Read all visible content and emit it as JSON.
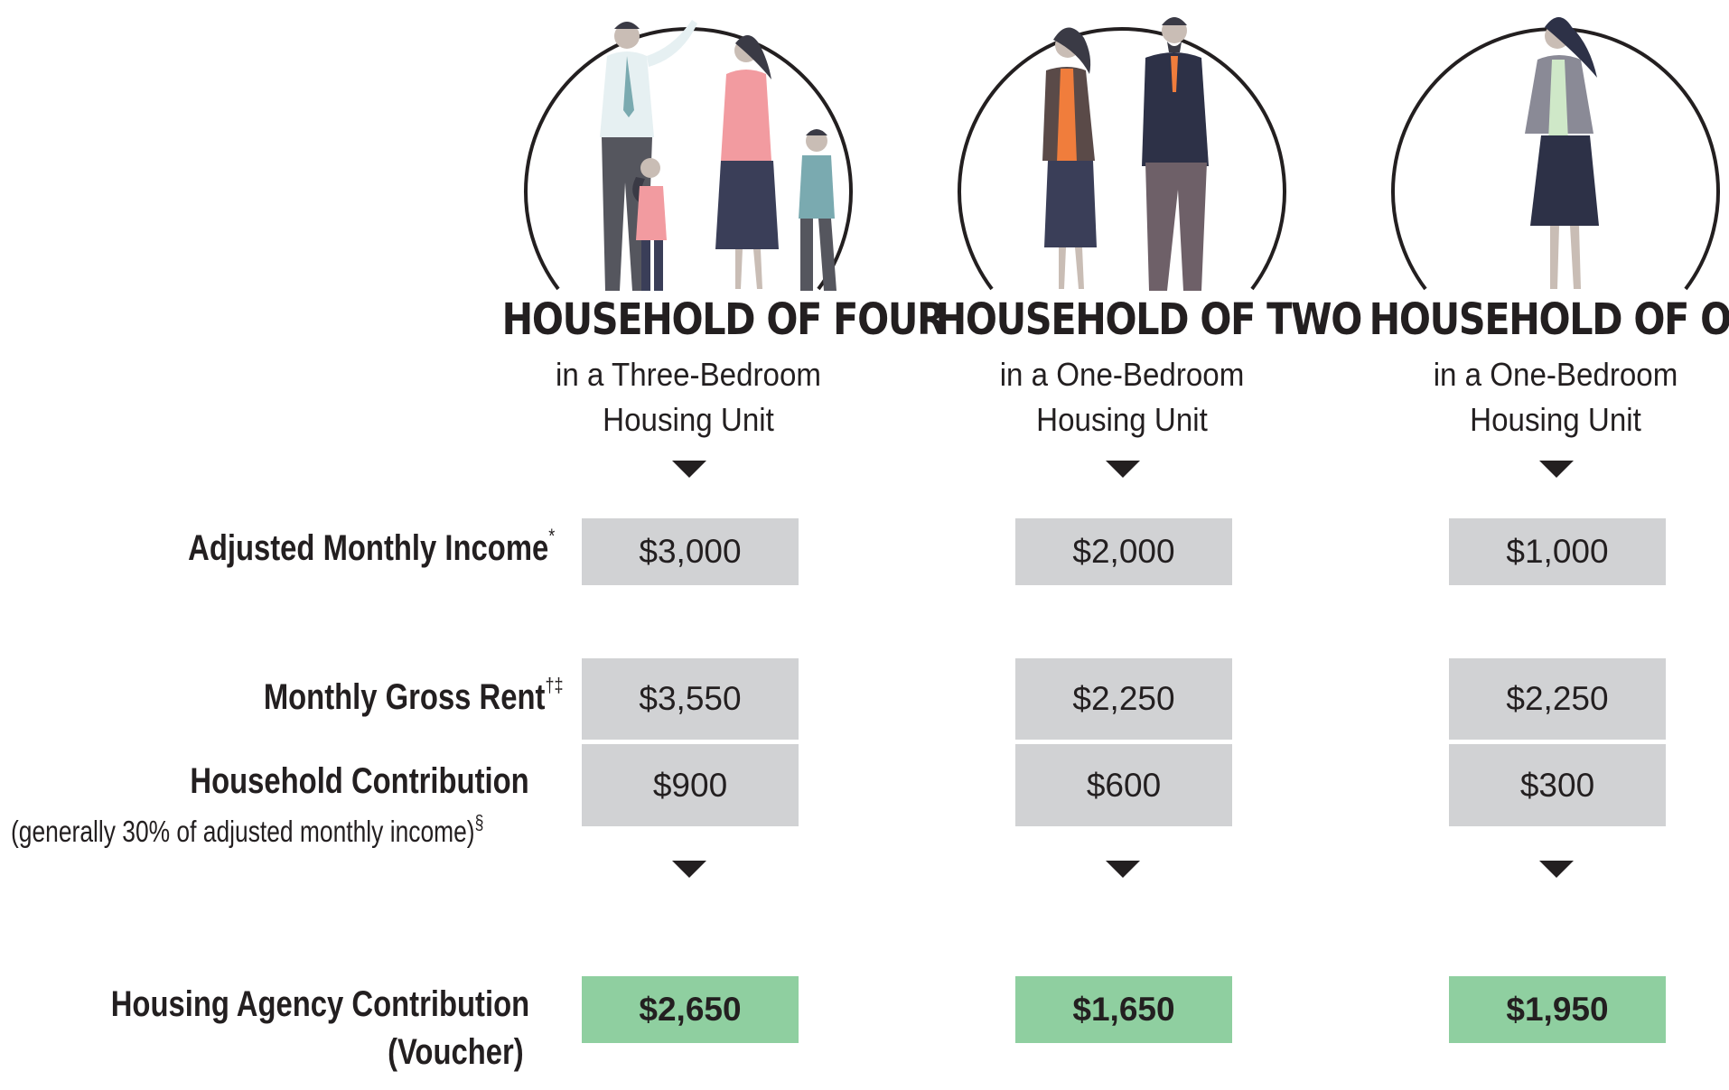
{
  "columns": [
    {
      "title": "HOUSEHOLD OF FOUR",
      "subtitle_line1": "in a Three-Bedroom",
      "subtitle_line2": "Housing Unit",
      "adjusted_income": "$3,000",
      "gross_rent": "$3,550",
      "household_contribution": "$900",
      "agency_contribution": "$2,650"
    },
    {
      "title": "HOUSEHOLD OF TWO",
      "subtitle_line1": "in a One-Bedroom",
      "subtitle_line2": "Housing Unit",
      "adjusted_income": "$2,000",
      "gross_rent": "$2,250",
      "household_contribution": "$600",
      "agency_contribution": "$1,650"
    },
    {
      "title": "HOUSEHOLD OF ONE",
      "subtitle_line1": "in a One-Bedroom",
      "subtitle_line2": "Housing Unit",
      "adjusted_income": "$1,000",
      "gross_rent": "$2,250",
      "household_contribution": "$300",
      "agency_contribution": "$1,950"
    }
  ],
  "rows": {
    "adjusted_income_label": "Adjusted Monthly Income",
    "adjusted_income_mark": "*",
    "gross_rent_label": "Monthly Gross Rent",
    "gross_rent_mark": "†‡",
    "household_contribution_label": "Household Contribution",
    "household_contribution_note": "(generally 30% of adjusted monthly income)",
    "household_contribution_mark": "§",
    "agency_label_line1": "Housing Agency Contribution",
    "agency_label_line2": "(Voucher)"
  },
  "colors": {
    "cell_gray": "#d1d2d4",
    "cell_green": "#8fcfa0",
    "text": "#231f20"
  },
  "icons": [
    "family-of-four-illustration",
    "couple-illustration",
    "single-woman-illustration",
    "down-arrow-icon"
  ]
}
